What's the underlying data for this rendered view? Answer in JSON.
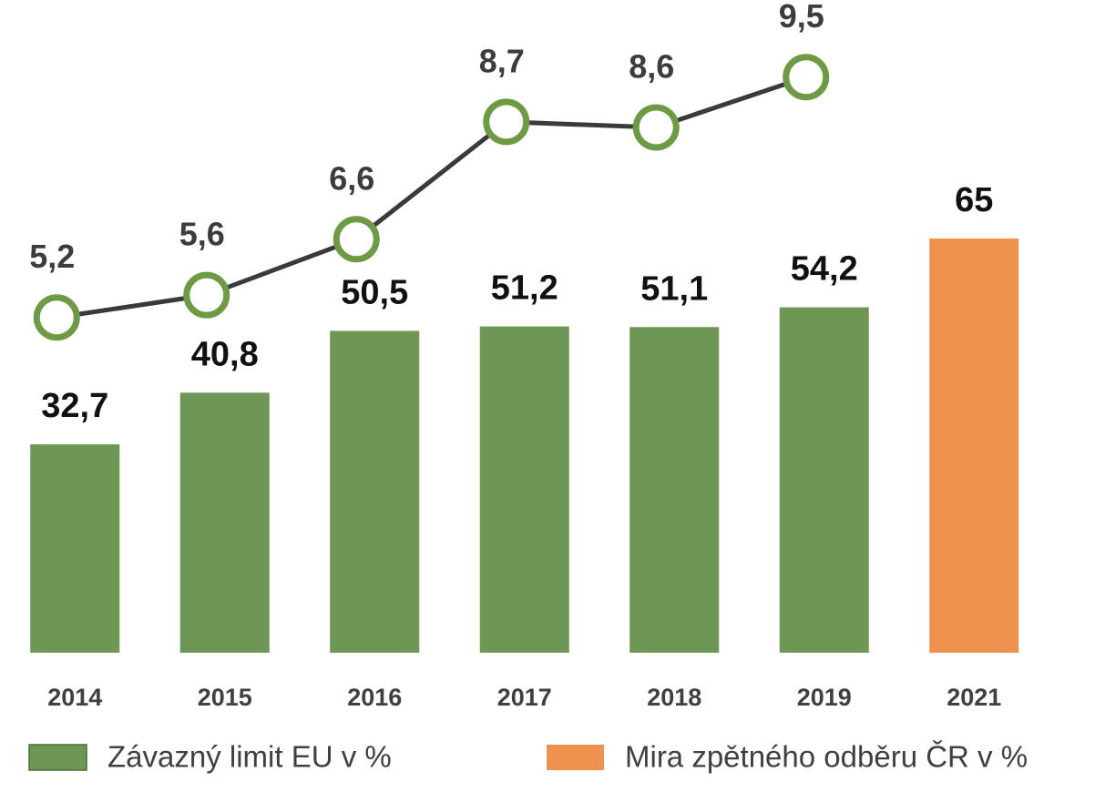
{
  "chart_data": {
    "type": "bar",
    "categories": [
      "2014",
      "2015",
      "2016",
      "2017",
      "2018",
      "2019",
      "2021"
    ],
    "series": [
      {
        "name": "Závazný limit EU v %",
        "color": "#6e9655",
        "values": [
          32.7,
          40.8,
          50.5,
          51.2,
          51.1,
          54.2,
          null
        ],
        "value_labels": [
          "32,7",
          "40,8",
          "50,5",
          "51,2",
          "51,1",
          "54,2",
          null
        ]
      },
      {
        "name": "Mira zpětného odběru ČR v %",
        "color": "#f0924f",
        "values": [
          null,
          null,
          null,
          null,
          null,
          null,
          65
        ],
        "value_labels": [
          null,
          null,
          null,
          null,
          null,
          null,
          "65"
        ]
      }
    ],
    "line_series": {
      "type": "line",
      "axis": "y2",
      "color": "#3a3a3a",
      "marker_color": "#6e9a44",
      "values": [
        5.2,
        5.6,
        6.6,
        8.7,
        8.6,
        9.5,
        null
      ],
      "value_labels": [
        "5,2",
        "5,6",
        "6,6",
        "8,7",
        "8,6",
        "9,5",
        null
      ]
    },
    "ylim": [
      0,
      65
    ],
    "y2lim": [
      0,
      10
    ]
  }
}
